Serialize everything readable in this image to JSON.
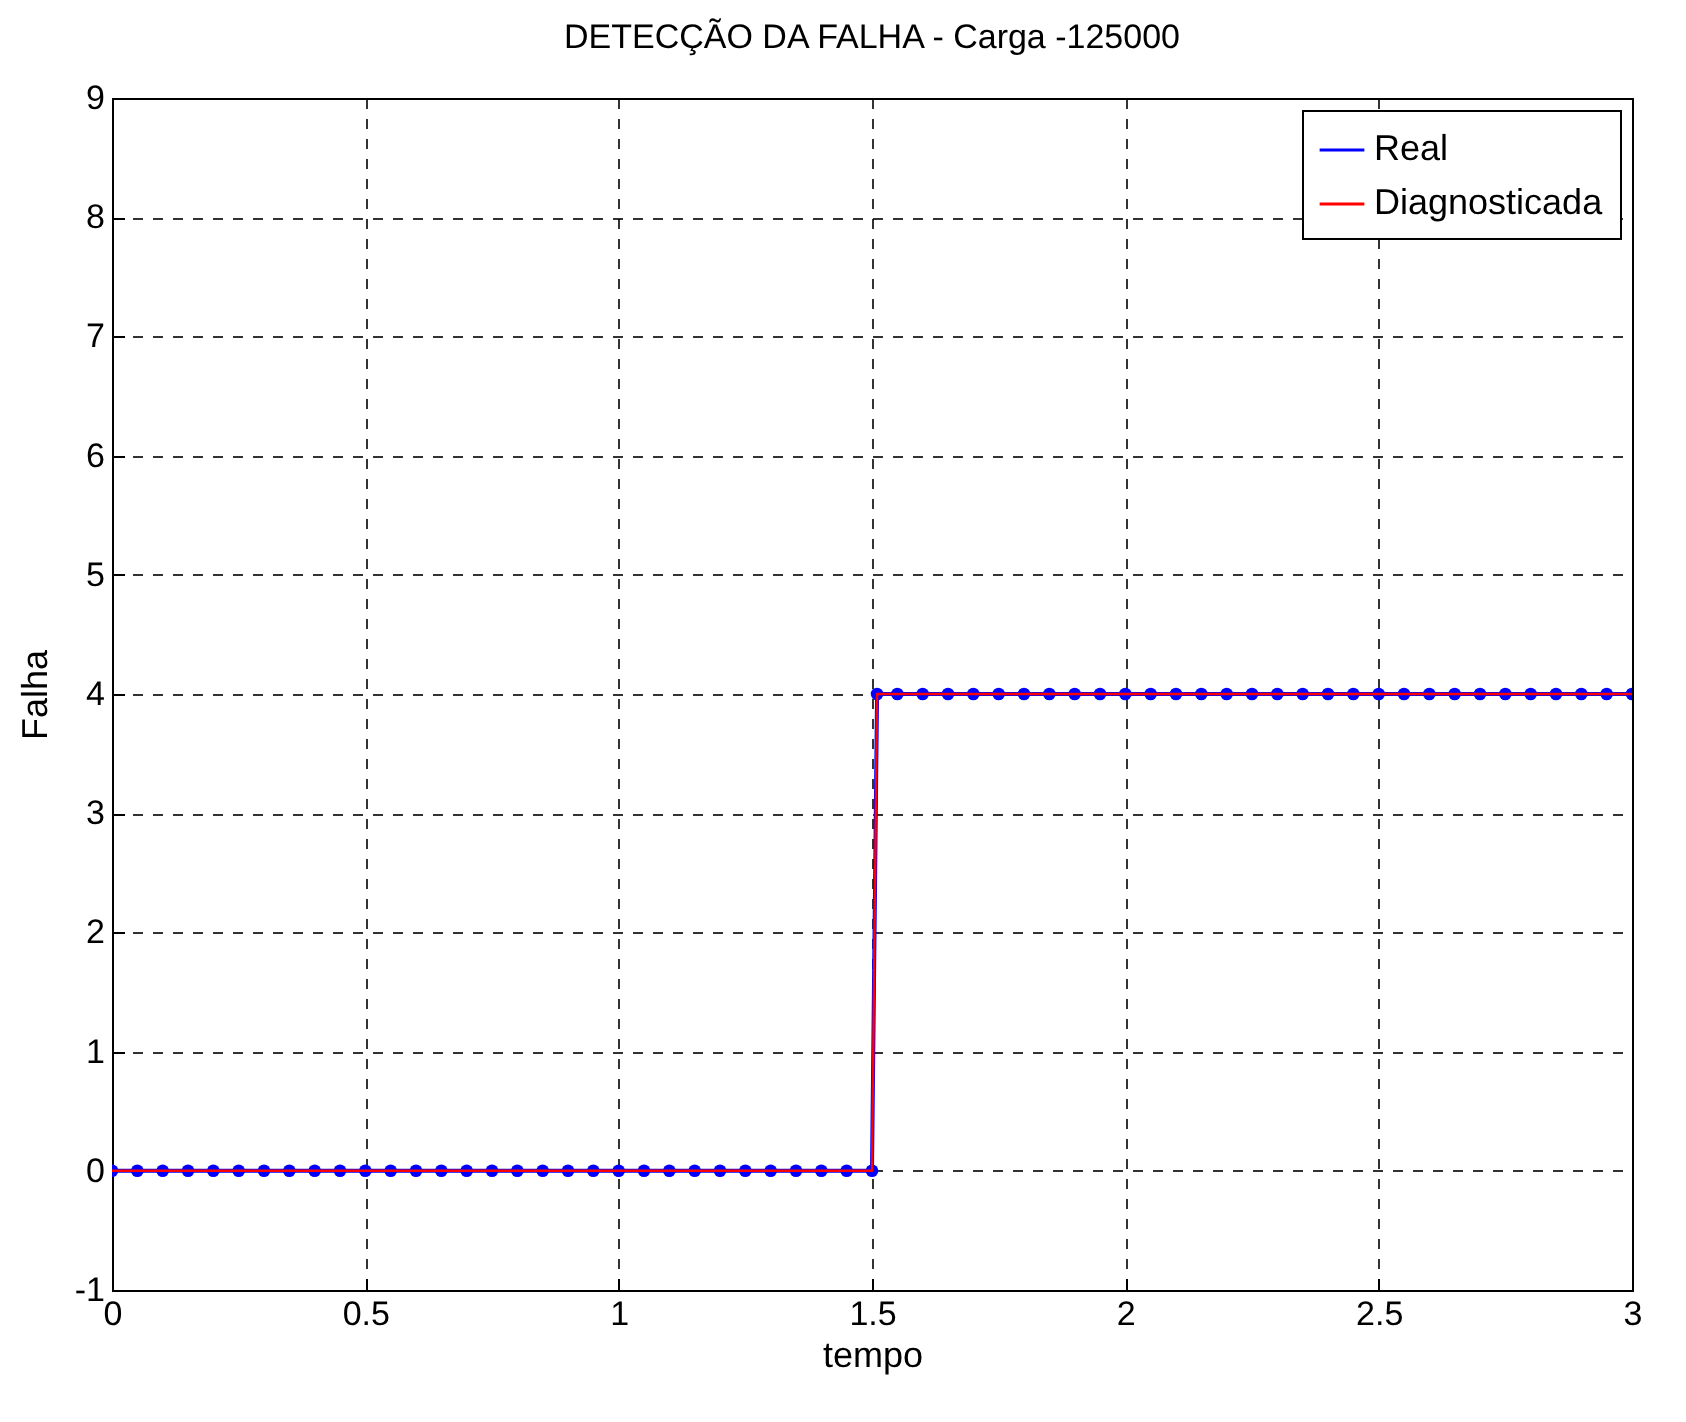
{
  "chart_data": {
    "type": "line",
    "title": "DETECÇÃO DA FALHA - Carga -125000",
    "xlabel": "tempo",
    "ylabel": "Falha",
    "xlim": [
      0,
      3
    ],
    "xticks": [
      0,
      0.5,
      1,
      1.5,
      2,
      2.5,
      3
    ],
    "ylim": [
      -1,
      9
    ],
    "yticks": [
      -1,
      0,
      1,
      2,
      3,
      4,
      5,
      6,
      7,
      8,
      9
    ],
    "grid": true,
    "legend": "top right",
    "series": [
      {
        "name": "Real",
        "color": "#0000ff",
        "marker": "circle",
        "x": [
          0,
          0.05,
          0.1,
          0.15,
          0.2,
          0.25,
          0.3,
          0.35,
          0.4,
          0.45,
          0.5,
          0.55,
          0.6,
          0.65,
          0.7,
          0.75,
          0.8,
          0.85,
          0.9,
          0.95,
          1,
          1.05,
          1.1,
          1.15,
          1.2,
          1.25,
          1.3,
          1.35,
          1.4,
          1.45,
          1.5,
          1.51,
          1.55,
          1.6,
          1.65,
          1.7,
          1.75,
          1.8,
          1.85,
          1.9,
          1.95,
          2,
          2.05,
          2.1,
          2.15,
          2.2,
          2.25,
          2.3,
          2.35,
          2.4,
          2.45,
          2.5,
          2.55,
          2.6,
          2.65,
          2.7,
          2.75,
          2.8,
          2.85,
          2.9,
          2.95,
          3
        ],
        "values": [
          0,
          0,
          0,
          0,
          0,
          0,
          0,
          0,
          0,
          0,
          0,
          0,
          0,
          0,
          0,
          0,
          0,
          0,
          0,
          0,
          0,
          0,
          0,
          0,
          0,
          0,
          0,
          0,
          0,
          0,
          0,
          4,
          4,
          4,
          4,
          4,
          4,
          4,
          4,
          4,
          4,
          4,
          4,
          4,
          4,
          4,
          4,
          4,
          4,
          4,
          4,
          4,
          4,
          4,
          4,
          4,
          4,
          4,
          4,
          4,
          4,
          4
        ]
      },
      {
        "name": "Diagnosticada",
        "color": "#ff0000",
        "marker": "none",
        "x": [
          0,
          1.5,
          1.51,
          3
        ],
        "values": [
          0,
          0,
          4,
          4
        ]
      }
    ]
  }
}
